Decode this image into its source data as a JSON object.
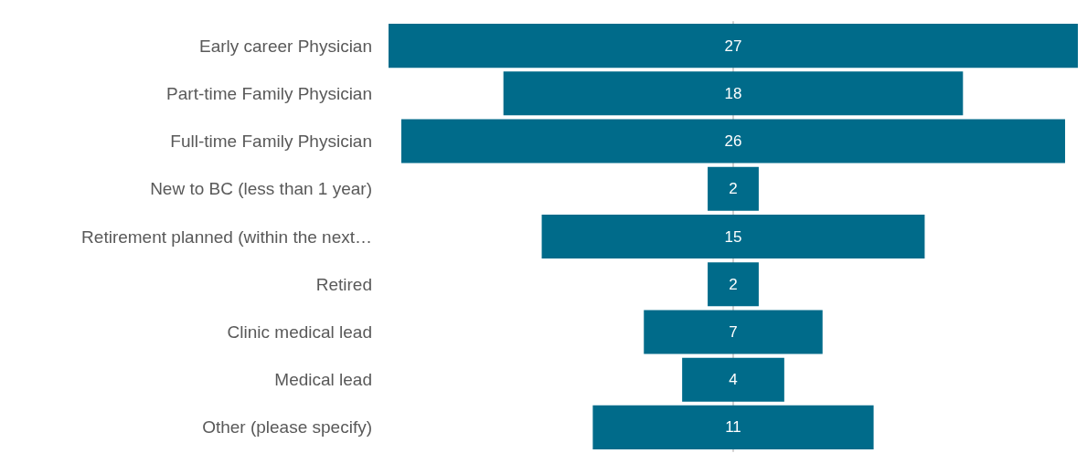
{
  "chart_data": {
    "type": "other",
    "categories": [
      "Early career Physician",
      "Part-time Family Physician",
      "Full-time Family Physician",
      "New to BC (less than 1 year)",
      "Retirement planned (within the next…",
      "Retired",
      "Clinic medical lead",
      "Medical lead",
      "Other (please specify)"
    ],
    "values": [
      27,
      18,
      26,
      2,
      15,
      2,
      7,
      4,
      11
    ],
    "color": "#006b8a",
    "data_labels": true
  }
}
